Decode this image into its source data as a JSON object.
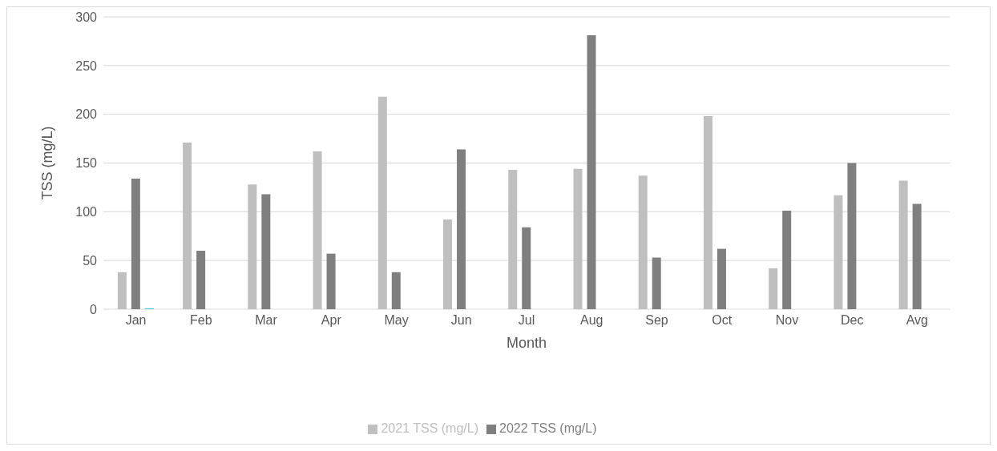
{
  "chart_data": {
    "type": "bar",
    "xlabel": "Month",
    "ylabel": "TSS (mg/L)",
    "categories": [
      "Jan",
      "Feb",
      "Mar",
      "Apr",
      "May",
      "Jun",
      "Jul",
      "Aug",
      "Sep",
      "Oct",
      "Nov",
      "Dec",
      "Avg"
    ],
    "series": [
      {
        "name": "2021 TSS (mg/L)",
        "color": "#bfbfbf",
        "values": [
          38,
          171,
          128,
          162,
          218,
          92,
          143,
          144,
          137,
          198,
          42,
          117,
          132
        ]
      },
      {
        "name": "2022 TSS (mg/L)",
        "color": "#7f7f7f",
        "values": [
          134,
          60,
          118,
          57,
          38,
          164,
          84,
          281,
          53,
          62,
          101,
          150,
          108
        ]
      },
      {
        "color": "#4bc9d6",
        "values": [
          1,
          null,
          null,
          null,
          null,
          null,
          null,
          null,
          null,
          null,
          null,
          null,
          null
        ]
      }
    ],
    "ylim": [
      0,
      300
    ],
    "yticks": [
      0,
      50,
      100,
      150,
      200,
      250,
      300
    ],
    "grid": "y",
    "legend": "bottom"
  }
}
